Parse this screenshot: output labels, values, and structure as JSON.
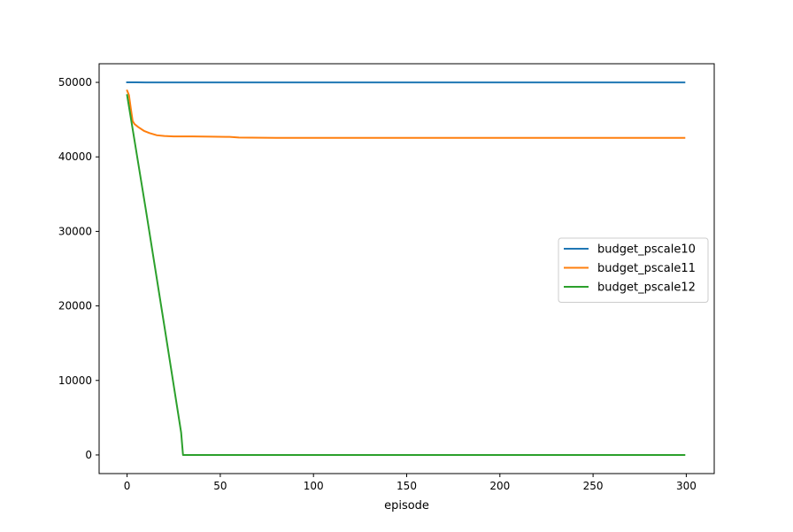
{
  "chart_data": {
    "type": "line",
    "title": "",
    "xlabel": "episode",
    "ylabel": "",
    "xlim": [
      -15,
      315
    ],
    "ylim": [
      -2500,
      52500
    ],
    "xticks": [
      0,
      50,
      100,
      150,
      200,
      250,
      300
    ],
    "yticks": [
      0,
      10000,
      20000,
      30000,
      40000,
      50000
    ],
    "xtick_labels": [
      "0",
      "50",
      "100",
      "150",
      "200",
      "250",
      "300"
    ],
    "ytick_labels": [
      "0",
      "10000",
      "20000",
      "30000",
      "40000",
      "50000"
    ],
    "grid": false,
    "legend_position": "center-right",
    "series": [
      {
        "name": "budget_pscale10",
        "color": "#1f77b4",
        "x": [
          0,
          5,
          10,
          50,
          100,
          150,
          200,
          250,
          299
        ],
        "y": [
          50000,
          50000,
          49990,
          49990,
          49990,
          49990,
          49990,
          49990,
          49990
        ]
      },
      {
        "name": "budget_pscale11",
        "color": "#ff7f0e",
        "x": [
          0,
          1,
          2,
          3,
          4,
          6,
          9,
          12,
          16,
          20,
          25,
          35,
          45,
          55,
          60,
          80,
          100,
          150,
          200,
          250,
          299
        ],
        "y": [
          48900,
          48300,
          46500,
          44800,
          44400,
          44000,
          43500,
          43200,
          42900,
          42800,
          42750,
          42750,
          42720,
          42680,
          42600,
          42550,
          42550,
          42550,
          42550,
          42550,
          42550
        ]
      },
      {
        "name": "budget_pscale12",
        "color": "#2ca02c",
        "x": [
          0,
          10,
          20,
          29,
          30,
          31,
          50,
          100,
          150,
          200,
          250,
          299
        ],
        "y": [
          48300,
          33000,
          17300,
          3000,
          0,
          0,
          0,
          0,
          0,
          0,
          0,
          0
        ]
      }
    ]
  }
}
